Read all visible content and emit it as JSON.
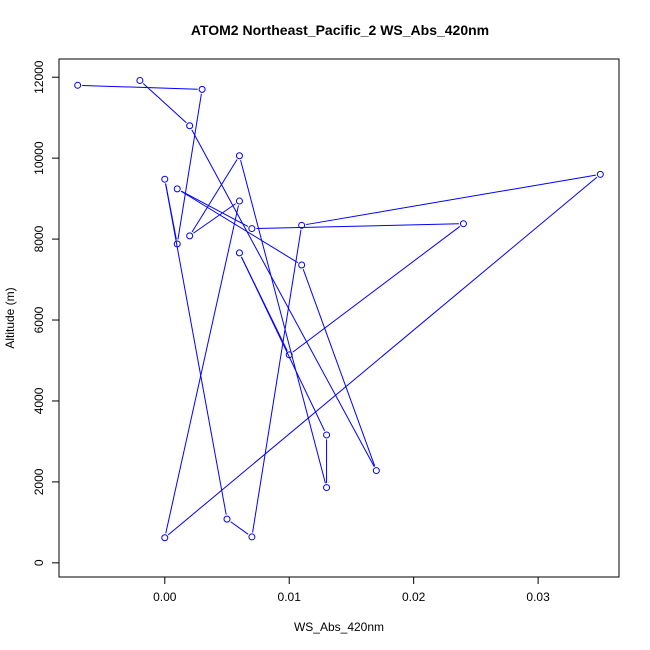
{
  "chart_data": {
    "type": "line",
    "title": "ATOM2 Northeast_Pacific_2 WS_Abs_420nm",
    "xlabel": "WS_Abs_420nm",
    "ylabel": "Altitude (m)",
    "xlim": [
      -0.0085,
      0.0365
    ],
    "ylim": [
      -350,
      12450
    ],
    "xticks": [
      0.0,
      0.01,
      0.02,
      0.03
    ],
    "xtick_labels": [
      "0.00",
      "0.01",
      "0.02",
      "0.03"
    ],
    "yticks": [
      0,
      2000,
      4000,
      6000,
      8000,
      10000,
      12000
    ],
    "ytick_labels": [
      "0",
      "2000",
      "4000",
      "6000",
      "8000",
      "10000",
      "12000"
    ],
    "series_color": "#0000ff",
    "marker": "open-circle",
    "grid": false,
    "points": [
      {
        "x": -0.007,
        "y": 11800
      },
      {
        "x": 0.003,
        "y": 11700
      },
      {
        "x": 0.001,
        "y": 7880
      },
      {
        "x": 0.0,
        "y": 9480
      },
      {
        "x": 0.005,
        "y": 1080
      },
      {
        "x": 0.007,
        "y": 640
      },
      {
        "x": 0.011,
        "y": 8340
      },
      {
        "x": 0.035,
        "y": 9600
      },
      {
        "x": 0.0,
        "y": 620
      },
      {
        "x": 0.006,
        "y": 8940
      },
      {
        "x": 0.002,
        "y": 8080
      },
      {
        "x": 0.006,
        "y": 10060
      },
      {
        "x": 0.013,
        "y": 1860
      },
      {
        "x": 0.013,
        "y": 3160
      },
      {
        "x": 0.006,
        "y": 7660
      },
      {
        "x": 0.01,
        "y": 5140
      },
      {
        "x": 0.024,
        "y": 8380
      },
      {
        "x": 0.007,
        "y": 8260
      },
      {
        "x": 0.001,
        "y": 9240
      },
      {
        "x": 0.011,
        "y": 7360
      },
      {
        "x": 0.017,
        "y": 2280
      },
      {
        "x": 0.002,
        "y": 10800
      },
      {
        "x": -0.002,
        "y": 11920
      }
    ]
  }
}
